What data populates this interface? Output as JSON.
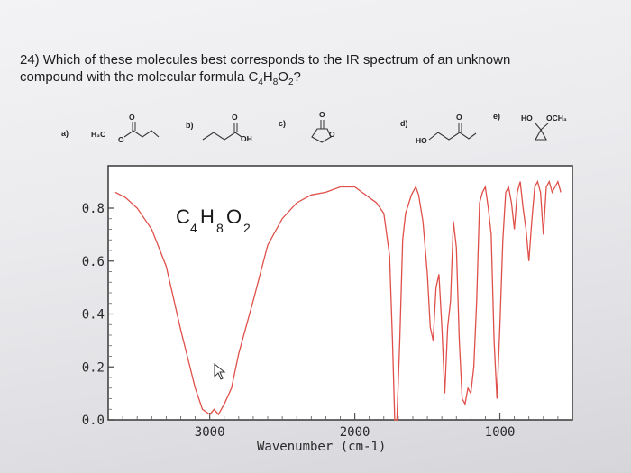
{
  "question": {
    "number": "24)",
    "text_line1": "Which of these molecules best corresponds to the IR spectrum of an unknown",
    "text_line2_prefix": "compound with the molecular formula C",
    "f_c": "4",
    "f_h_letter": "H",
    "f_h": "8",
    "f_o_letter": "O",
    "f_o": "2",
    "text_line2_suffix": "?"
  },
  "choices": [
    {
      "label": "a)",
      "atoms": [
        "H₃C",
        "O",
        "O"
      ]
    },
    {
      "label": "b)",
      "atoms": [
        "OH",
        "O"
      ]
    },
    {
      "label": "c)",
      "atoms": [
        "O",
        "O"
      ]
    },
    {
      "label": "d)",
      "atoms": [
        "HO",
        "O"
      ]
    },
    {
      "label": "e)",
      "atoms": [
        "HO",
        "OCH₃"
      ]
    }
  ],
  "spectrum_formula": {
    "c": "C",
    "c_sub": "4",
    "h": "H",
    "h_sub": "8",
    "o": "O",
    "o_sub": "2"
  },
  "chart_data": {
    "type": "line",
    "xlabel": "Wavenumber (cm-1)",
    "ylabel": "",
    "x_ticks": [
      "3000",
      "2000",
      "1000"
    ],
    "y_ticks": [
      "0.0",
      "0.2",
      "0.4",
      "0.6",
      "0.8"
    ],
    "xlim": [
      3700,
      500
    ],
    "ylim": [
      0,
      0.96
    ],
    "line_color": "#e0504a",
    "series": [
      {
        "name": "",
        "x": [
          3650,
          3580,
          3500,
          3400,
          3300,
          3200,
          3100,
          3050,
          3000,
          2970,
          2940,
          2900,
          2850,
          2800,
          2700,
          2600,
          2500,
          2400,
          2300,
          2200,
          2100,
          2000,
          1950,
          1900,
          1850,
          1800,
          1760,
          1740,
          1725,
          1710,
          1690,
          1670,
          1650,
          1610,
          1580,
          1560,
          1530,
          1500,
          1480,
          1460,
          1440,
          1420,
          1400,
          1380,
          1360,
          1340,
          1320,
          1300,
          1280,
          1260,
          1240,
          1220,
          1200,
          1180,
          1160,
          1140,
          1120,
          1100,
          1080,
          1060,
          1040,
          1020,
          1000,
          980,
          960,
          940,
          920,
          900,
          880,
          860,
          840,
          820,
          800,
          780,
          760,
          740,
          720,
          700,
          680,
          660,
          640,
          620,
          600,
          580
        ],
        "y": [
          0.86,
          0.84,
          0.8,
          0.72,
          0.58,
          0.34,
          0.12,
          0.04,
          0.02,
          0.04,
          0.02,
          0.06,
          0.12,
          0.25,
          0.45,
          0.66,
          0.76,
          0.82,
          0.85,
          0.86,
          0.88,
          0.88,
          0.86,
          0.84,
          0.82,
          0.78,
          0.62,
          0.3,
          0.0,
          0.0,
          0.3,
          0.68,
          0.78,
          0.85,
          0.88,
          0.85,
          0.75,
          0.55,
          0.35,
          0.3,
          0.5,
          0.55,
          0.35,
          0.1,
          0.35,
          0.45,
          0.75,
          0.65,
          0.3,
          0.08,
          0.06,
          0.12,
          0.1,
          0.2,
          0.45,
          0.82,
          0.86,
          0.88,
          0.8,
          0.7,
          0.3,
          0.08,
          0.35,
          0.68,
          0.86,
          0.88,
          0.82,
          0.72,
          0.86,
          0.9,
          0.8,
          0.72,
          0.6,
          0.75,
          0.88,
          0.9,
          0.86,
          0.7,
          0.88,
          0.9,
          0.86,
          0.88,
          0.9,
          0.86
        ]
      }
    ]
  }
}
